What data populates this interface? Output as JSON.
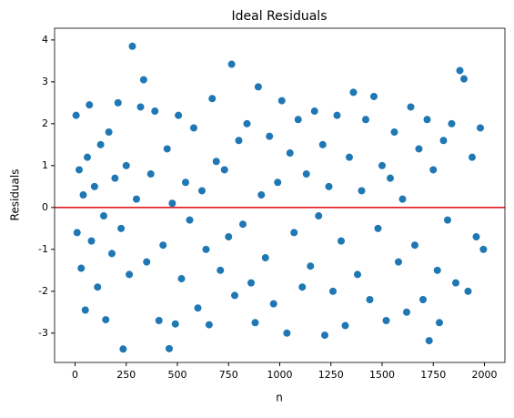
{
  "chart_data": {
    "type": "scatter",
    "title": "Ideal Residuals",
    "x_label": "n",
    "y_label": "Residuals",
    "xlim": [
      -100,
      2100
    ],
    "ylim": [
      -3.7,
      4.28
    ],
    "xticks": [
      0,
      250,
      500,
      750,
      1000,
      1250,
      1500,
      1750,
      2000
    ],
    "yticks": [
      -3,
      -2,
      -1,
      0,
      1,
      2,
      3,
      4
    ],
    "reference_line": {
      "value": 0,
      "color": "#e41a1c"
    },
    "series": [
      {
        "color": "#1f77b4",
        "x": [
          5,
          10,
          20,
          30,
          40,
          50,
          60,
          70,
          80,
          95,
          110,
          125,
          140,
          150,
          165,
          180,
          195,
          210,
          225,
          235,
          250,
          265,
          280,
          300,
          320,
          335,
          350,
          370,
          390,
          410,
          430,
          450,
          460,
          475,
          490,
          505,
          520,
          540,
          560,
          580,
          600,
          620,
          640,
          655,
          670,
          690,
          710,
          730,
          750,
          765,
          780,
          800,
          820,
          840,
          860,
          880,
          895,
          910,
          930,
          950,
          970,
          990,
          1010,
          1035,
          1050,
          1070,
          1090,
          1110,
          1130,
          1150,
          1170,
          1190,
          1210,
          1220,
          1240,
          1260,
          1280,
          1300,
          1320,
          1340,
          1360,
          1380,
          1400,
          1420,
          1440,
          1460,
          1480,
          1500,
          1520,
          1540,
          1560,
          1580,
          1600,
          1620,
          1640,
          1660,
          1680,
          1700,
          1720,
          1730,
          1750,
          1770,
          1780,
          1800,
          1820,
          1840,
          1860,
          1880,
          1900,
          1920,
          1940,
          1960,
          1980,
          1995
        ],
        "values": [
          2.2,
          -0.6,
          0.9,
          -1.45,
          0.3,
          -2.45,
          1.2,
          2.45,
          -0.8,
          0.5,
          -1.9,
          1.5,
          -0.2,
          -2.68,
          1.8,
          -1.1,
          0.7,
          2.5,
          -0.5,
          -3.38,
          1.0,
          -1.6,
          3.85,
          0.2,
          2.4,
          3.05,
          -1.3,
          0.8,
          2.3,
          -2.7,
          -0.9,
          1.4,
          -3.37,
          0.1,
          -2.78,
          2.2,
          -1.7,
          0.6,
          -0.3,
          1.9,
          -2.4,
          0.4,
          -1.0,
          -2.8,
          2.6,
          1.1,
          -1.5,
          0.9,
          -0.7,
          3.42,
          -2.1,
          1.6,
          -0.4,
          2.0,
          -1.8,
          -2.75,
          2.88,
          0.3,
          -1.2,
          1.7,
          -2.3,
          0.6,
          2.55,
          -3.0,
          1.3,
          -0.6,
          2.1,
          -1.9,
          0.8,
          -1.4,
          2.3,
          -0.2,
          1.5,
          -3.05,
          0.5,
          -2.0,
          2.2,
          -0.8,
          -2.82,
          1.2,
          2.75,
          -1.6,
          0.4,
          2.1,
          -2.2,
          2.65,
          -0.5,
          1.0,
          -2.7,
          0.7,
          1.8,
          -1.3,
          0.2,
          -2.5,
          2.4,
          -0.9,
          1.4,
          -2.2,
          2.1,
          -3.18,
          0.9,
          -1.5,
          -2.75,
          1.6,
          -0.3,
          2.0,
          -1.8,
          3.27,
          3.07,
          -2.0,
          1.2,
          -0.7,
          1.9,
          -1.0
        ]
      }
    ]
  }
}
